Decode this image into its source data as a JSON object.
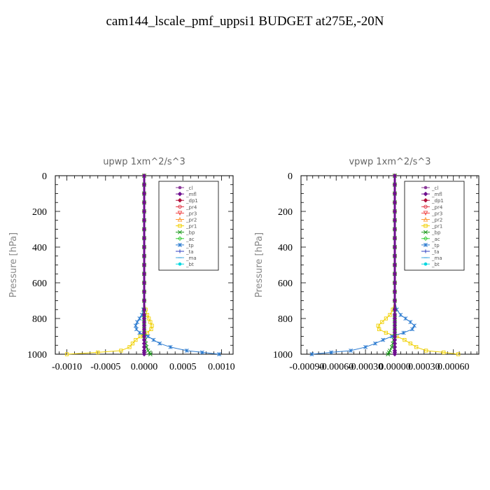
{
  "figure": {
    "title": "cam144_lscale_pmf_uppsi1  BUDGET at275E,-20N",
    "ylabel": "Pressure [hPa]"
  },
  "legend": [
    {
      "label": "_cl",
      "color": "#8b3a9a",
      "marker": "circle"
    },
    {
      "label": "_mfl",
      "color": "#6e0f8f",
      "marker": "diamond"
    },
    {
      "label": "_dp1",
      "color": "#b0103c",
      "marker": "diamond"
    },
    {
      "label": "_pr4",
      "color": "#e03040",
      "marker": "circle-open"
    },
    {
      "label": "_pr3",
      "color": "#f04848",
      "marker": "triangle-down"
    },
    {
      "label": "_pr2",
      "color": "#ff9933",
      "marker": "triangle"
    },
    {
      "label": "_pr1",
      "color": "#f0d000",
      "marker": "square-open"
    },
    {
      "label": "_bp",
      "color": "#1a9a1a",
      "marker": "x"
    },
    {
      "label": "_ac",
      "color": "#33cc33",
      "marker": "diamond-open"
    },
    {
      "label": "_tp",
      "color": "#2a7ad0",
      "marker": "star"
    },
    {
      "label": "_ta",
      "color": "#3040c0",
      "marker": "plus"
    },
    {
      "label": "_ma",
      "color": "#40a8e0",
      "marker": "dash"
    },
    {
      "label": "_bt",
      "color": "#00d8e0",
      "marker": "circle-filled"
    }
  ],
  "chart_data": [
    {
      "type": "line",
      "title": "upwp   1xm^2/s^3",
      "ylabel": "Pressure [hPa]",
      "ylim": [
        1000,
        0
      ],
      "xlim": [
        -0.00115,
        0.00115
      ],
      "xticks": [
        "-0.0010",
        "-0.0005",
        "0.0000",
        "0.0005",
        "0.0010"
      ],
      "xtick_values": [
        -0.001,
        -0.0005,
        0,
        0.0005,
        0.001
      ],
      "yticks": [
        "0",
        "200",
        "400",
        "600",
        "800",
        "1000"
      ],
      "ytick_values": [
        0,
        200,
        400,
        600,
        800,
        1000
      ],
      "pressure": [
        0,
        50,
        100,
        150,
        200,
        250,
        300,
        350,
        400,
        450,
        500,
        550,
        600,
        650,
        700,
        750,
        780,
        800,
        820,
        840,
        860,
        880,
        900,
        920,
        940,
        960,
        980,
        990,
        1000
      ],
      "series": [
        {
          "name": "_pr1",
          "values": [
            0,
            0,
            0,
            0,
            0,
            0,
            0,
            0,
            0,
            0,
            0,
            0,
            0,
            0,
            0,
            2e-05,
            4e-05,
            6e-05,
            8e-05,
            0.0001,
            9e-05,
            4e-05,
            -5e-05,
            -0.00011,
            -0.00015,
            -0.00019,
            -0.0003,
            -0.0006,
            -0.001
          ]
        },
        {
          "name": "_tp",
          "values": [
            0,
            0,
            0,
            0,
            0,
            0,
            0,
            0,
            0,
            0,
            0,
            0,
            0,
            0,
            0,
            -1e-05,
            -3e-05,
            -6e-05,
            -9e-05,
            -0.00011,
            -0.0001,
            -6e-05,
            5e-05,
            0.00012,
            0.0002,
            0.00034,
            0.00055,
            0.00075,
            0.00097
          ]
        },
        {
          "name": "_bp",
          "values": [
            0,
            0,
            0,
            0,
            0,
            0,
            0,
            0,
            0,
            0,
            0,
            0,
            0,
            0,
            0,
            0,
            0,
            0,
            0,
            0,
            0,
            0,
            0,
            1e-05,
            2e-05,
            3e-05,
            5e-05,
            7e-05,
            8e-05
          ]
        },
        {
          "name": "_mfl",
          "values": [
            0,
            0,
            0,
            0,
            0,
            0,
            0,
            0,
            0,
            0,
            0,
            0,
            0,
            0,
            0,
            0,
            0,
            0,
            0,
            0,
            0,
            0,
            0,
            0,
            0,
            0,
            0,
            0,
            0
          ]
        }
      ]
    },
    {
      "type": "line",
      "title": "vpwp   1xm^2/s^3",
      "ylabel": "Pressure [hPa]",
      "ylim": [
        1000,
        0
      ],
      "xlim": [
        -0.00096,
        0.00086
      ],
      "xticks": [
        "-0.00090",
        "-0.00060",
        "-0.00030",
        "0.00000",
        "0.00030",
        "0.00060"
      ],
      "xtick_values": [
        -0.0009,
        -0.0006,
        -0.0003,
        0,
        0.0003,
        0.0006
      ],
      "yticks": [
        "0",
        "200",
        "400",
        "600",
        "800",
        "1000"
      ],
      "ytick_values": [
        0,
        200,
        400,
        600,
        800,
        1000
      ],
      "pressure": [
        0,
        50,
        100,
        150,
        200,
        250,
        300,
        350,
        400,
        450,
        500,
        550,
        600,
        650,
        700,
        750,
        780,
        800,
        820,
        840,
        860,
        880,
        900,
        920,
        940,
        960,
        980,
        990,
        1000
      ],
      "series": [
        {
          "name": "_pr1",
          "values": [
            0,
            0,
            0,
            0,
            0,
            0,
            0,
            0,
            0,
            0,
            0,
            0,
            0,
            0,
            0,
            -2e-05,
            -5e-05,
            -9e-05,
            -0.00013,
            -0.00017,
            -0.00016,
            -9e-05,
            2e-05,
            0.0001,
            0.00016,
            0.00022,
            0.00032,
            0.0005,
            0.00065
          ]
        },
        {
          "name": "_tp",
          "values": [
            0,
            0,
            0,
            0,
            0,
            0,
            0,
            0,
            0,
            0,
            0,
            0,
            0,
            0,
            0,
            2e-05,
            6e-05,
            0.00011,
            0.00016,
            0.0002,
            0.00018,
            9e-05,
            -3e-05,
            -0.00012,
            -0.0002,
            -0.0003,
            -0.00045,
            -0.00065,
            -0.00085
          ]
        },
        {
          "name": "_bp",
          "values": [
            0,
            0,
            0,
            0,
            0,
            0,
            0,
            0,
            0,
            0,
            0,
            0,
            0,
            0,
            0,
            0,
            0,
            0,
            0,
            0,
            0,
            0,
            0,
            -1e-05,
            -2e-05,
            -3e-05,
            -5e-05,
            -6e-05,
            -7e-05
          ]
        },
        {
          "name": "_mfl",
          "values": [
            0,
            0,
            0,
            0,
            0,
            0,
            0,
            0,
            0,
            0,
            0,
            0,
            0,
            0,
            0,
            0,
            0,
            0,
            0,
            0,
            0,
            0,
            0,
            0,
            0,
            0,
            0,
            0,
            0
          ]
        }
      ]
    }
  ]
}
